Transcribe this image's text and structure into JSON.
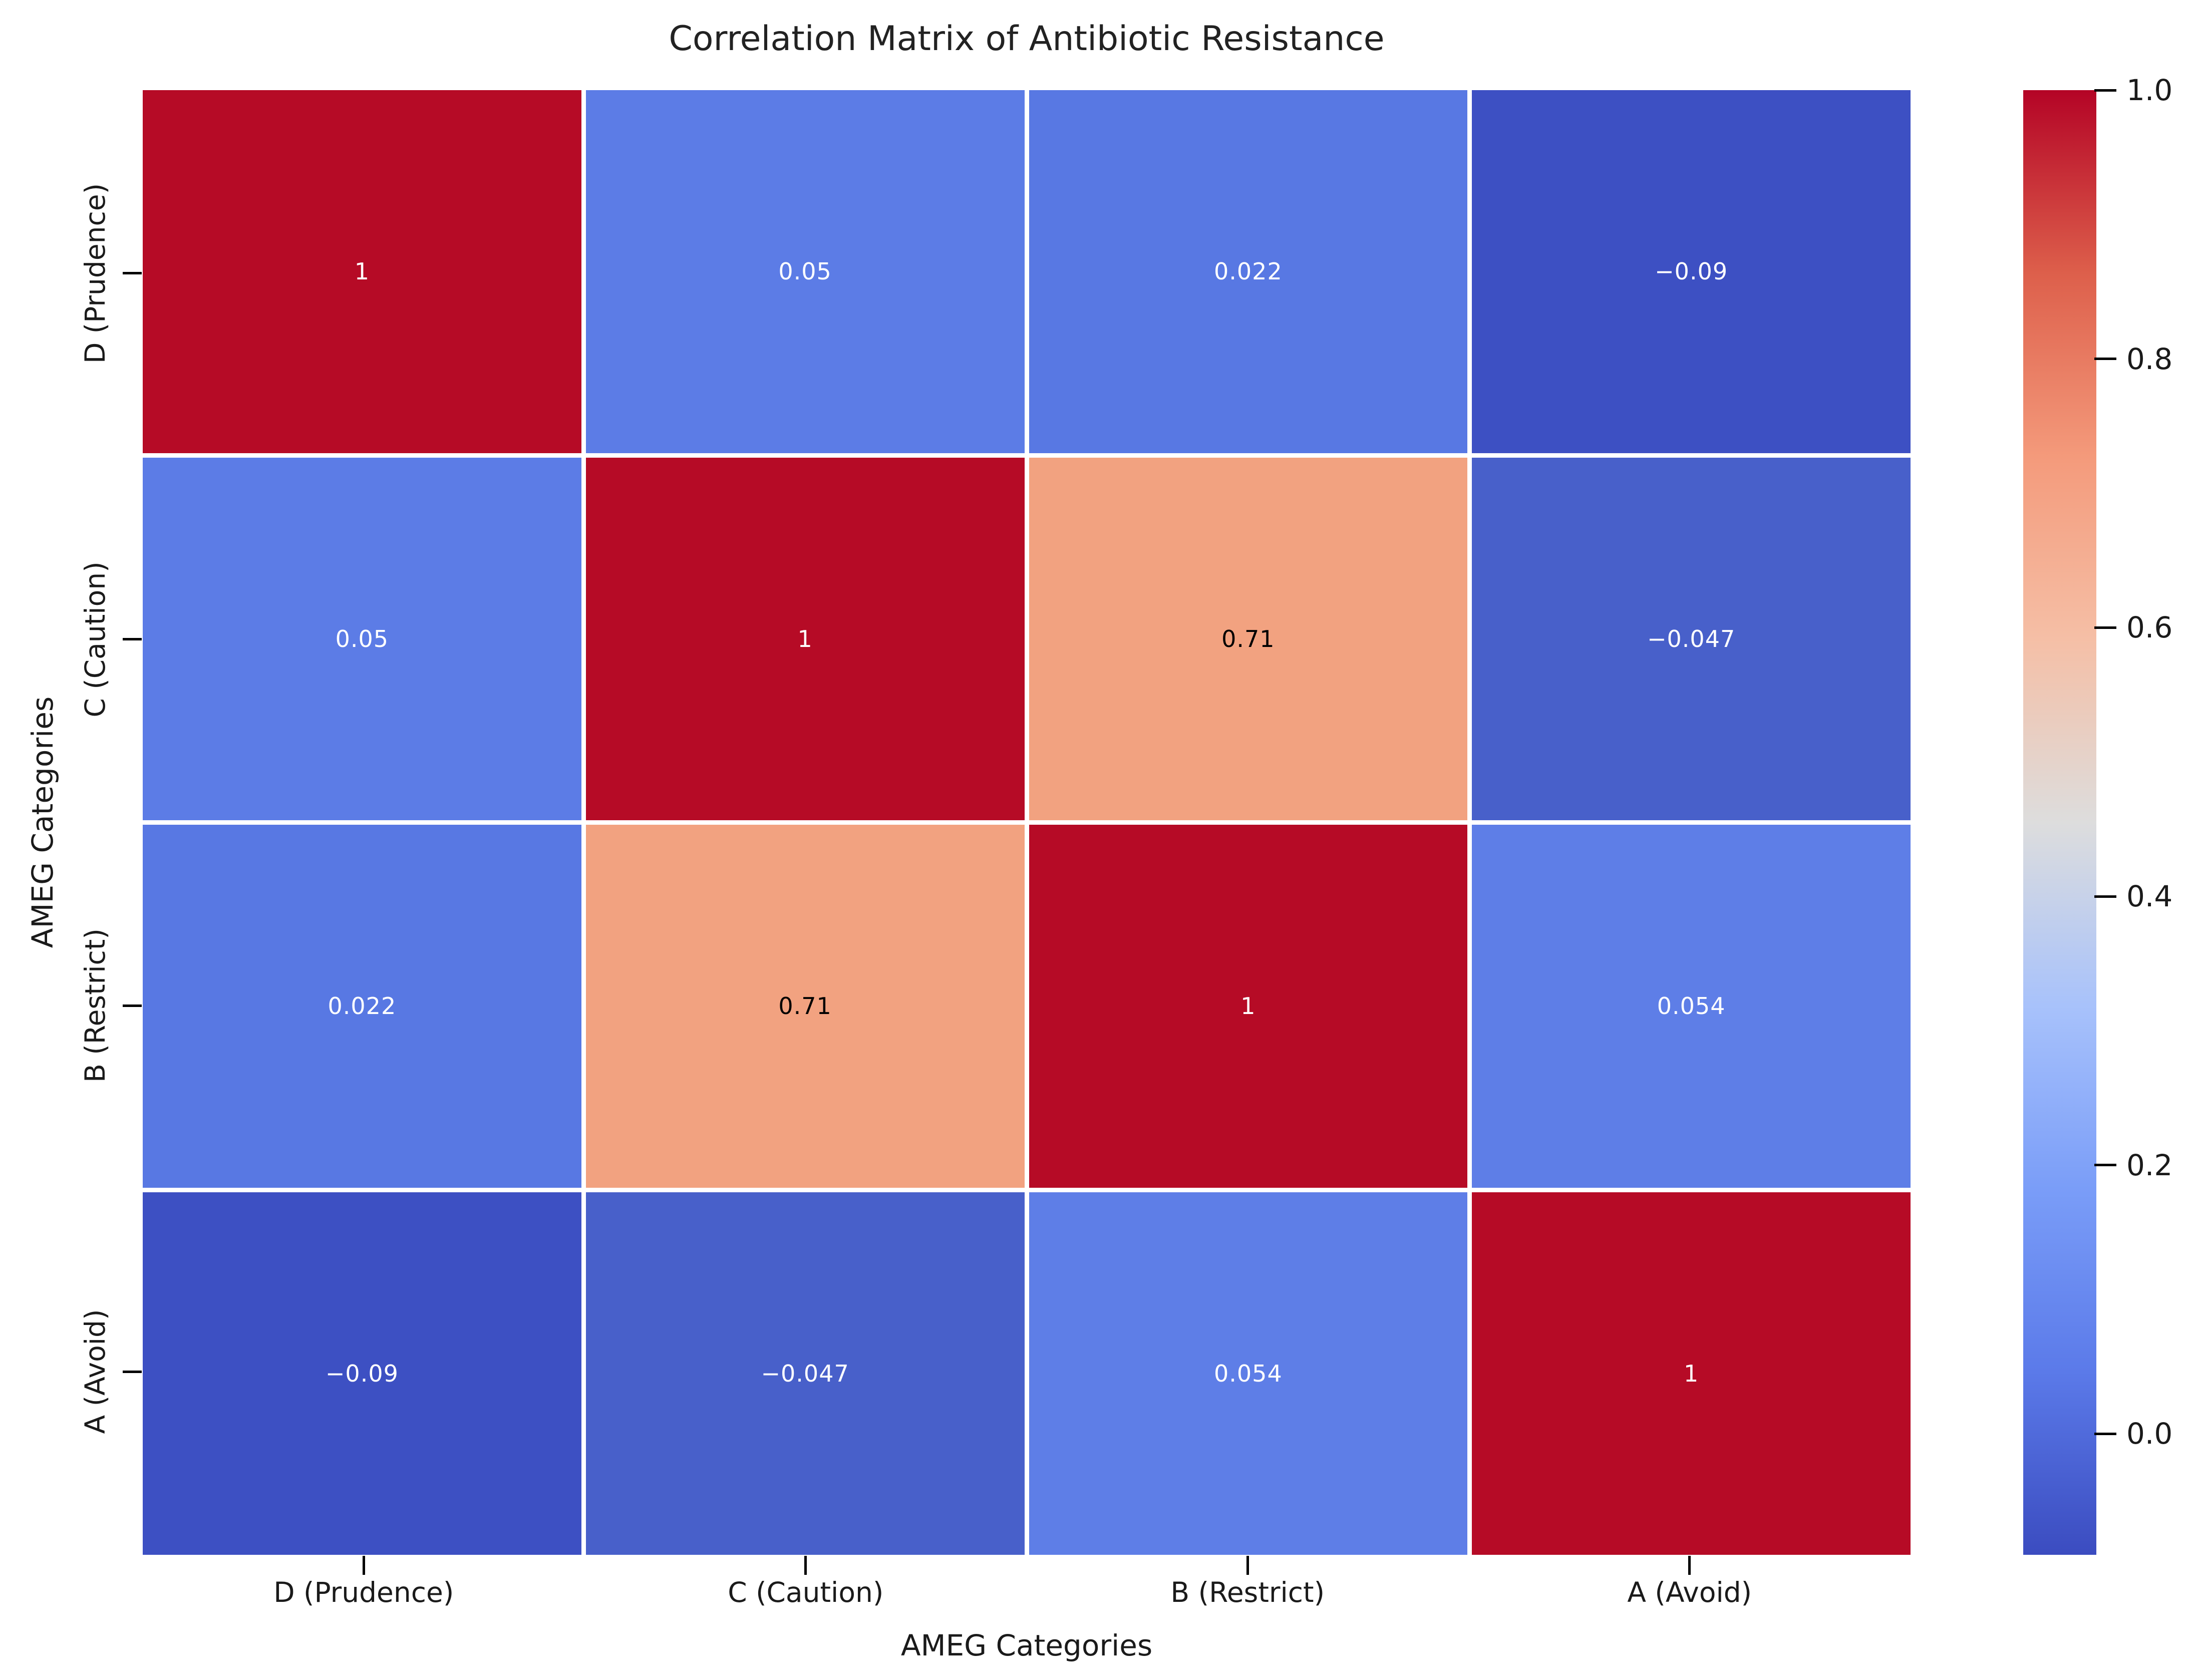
{
  "chart_data": {
    "type": "heatmap",
    "title": "Correlation Matrix of Antibiotic Resistance",
    "xlabel": "AMEG Categories",
    "ylabel": "AMEG Categories",
    "categories": [
      "D (Prudence)",
      "C (Caution)",
      "B (Restrict)",
      "A (Avoid)"
    ],
    "matrix": [
      [
        1,
        0.05,
        0.022,
        -0.09
      ],
      [
        0.05,
        1,
        0.71,
        -0.047
      ],
      [
        0.022,
        0.71,
        1,
        0.054
      ],
      [
        -0.09,
        -0.047,
        0.054,
        1
      ]
    ],
    "cell_labels": [
      [
        "1",
        "0.05",
        "0.022",
        "−0.09"
      ],
      [
        "0.05",
        "1",
        "0.71",
        "−0.047"
      ],
      [
        "0.022",
        "0.71",
        "1",
        "0.054"
      ],
      [
        "−0.09",
        "−0.047",
        "0.054",
        "1"
      ]
    ],
    "cell_colors": [
      [
        "#b60b26",
        "#5c7ce6",
        "#5878e3",
        "#3d50c3"
      ],
      [
        "#5c7ce6",
        "#b60b26",
        "#f2a280",
        "#4860ca"
      ],
      [
        "#5878e3",
        "#f2a280",
        "#b60b26",
        "#5e7ee7"
      ],
      [
        "#3d50c3",
        "#4860ca",
        "#5e7ee7",
        "#b60b26"
      ]
    ],
    "cell_text_colors": [
      [
        "#ffffff",
        "#ffffff",
        "#ffffff",
        "#ffffff"
      ],
      [
        "#ffffff",
        "#ffffff",
        "#000000",
        "#ffffff"
      ],
      [
        "#ffffff",
        "#000000",
        "#ffffff",
        "#ffffff"
      ],
      [
        "#ffffff",
        "#ffffff",
        "#ffffff",
        "#ffffff"
      ]
    ],
    "colormap": "coolwarm",
    "vmin": -0.09,
    "vmax": 1.0,
    "grid_line_color": "#ffffff",
    "legend_position": "right-colorbar",
    "colorbar_ticks": [
      {
        "label": "1.0",
        "value": 1.0
      },
      {
        "label": "0.8",
        "value": 0.8
      },
      {
        "label": "0.6",
        "value": 0.6
      },
      {
        "label": "0.4",
        "value": 0.4
      },
      {
        "label": "0.2",
        "value": 0.2
      },
      {
        "label": "0.0",
        "value": 0.0
      }
    ]
  },
  "colors": {
    "background": "#ffffff",
    "tick_mark": "#000000",
    "text": "#1a1a1a",
    "colormap_max": "#b40426",
    "colormap_mid": "#dddddd",
    "colormap_min": "#3b4cc0"
  }
}
